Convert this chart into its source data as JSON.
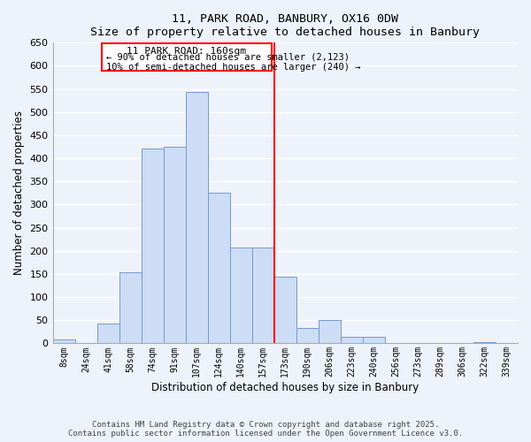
{
  "title": "11, PARK ROAD, BANBURY, OX16 0DW",
  "subtitle": "Size of property relative to detached houses in Banbury",
  "xlabel": "Distribution of detached houses by size in Banbury",
  "ylabel": "Number of detached properties",
  "bar_color": "#ccddf5",
  "bar_edge_color": "#7799cc",
  "background_color": "#eef2fb",
  "grid_color": "white",
  "categories": [
    "8sqm",
    "24sqm",
    "41sqm",
    "58sqm",
    "74sqm",
    "91sqm",
    "107sqm",
    "124sqm",
    "140sqm",
    "157sqm",
    "173sqm",
    "190sqm",
    "206sqm",
    "223sqm",
    "240sqm",
    "256sqm",
    "273sqm",
    "289sqm",
    "306sqm",
    "322sqm",
    "339sqm"
  ],
  "values": [
    8,
    0,
    43,
    153,
    422,
    425,
    543,
    325,
    207,
    207,
    144,
    34,
    50,
    14,
    14,
    0,
    0,
    0,
    0,
    3,
    0
  ],
  "ylim": [
    0,
    650
  ],
  "yticks": [
    0,
    50,
    100,
    150,
    200,
    250,
    300,
    350,
    400,
    450,
    500,
    550,
    600,
    650
  ],
  "marker_label": "11 PARK ROAD: 160sqm",
  "annotation_line1": "← 90% of detached houses are smaller (2,123)",
  "annotation_line2": "10% of semi-detached houses are larger (240) →",
  "marker_bar_index": 9,
  "footer1": "Contains HM Land Registry data © Crown copyright and database right 2025.",
  "footer2": "Contains public sector information licensed under the Open Government Licence v3.0."
}
